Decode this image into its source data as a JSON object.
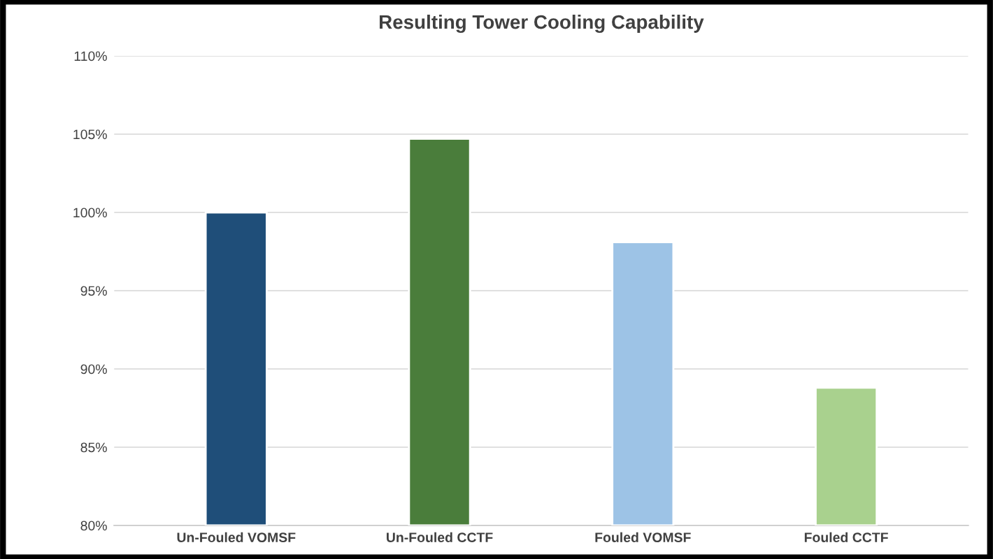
{
  "chart_data": {
    "type": "bar",
    "title": "Resulting Tower Cooling Capability",
    "categories": [
      "Un-Fouled VOMSF",
      "Un-Fouled CCTF",
      "Fouled VOMSF",
      "Fouled CCTF"
    ],
    "values": [
      100,
      104.7,
      98.1,
      88.8
    ],
    "colors": [
      "#1f4e79",
      "#4a7d3b",
      "#9dc3e6",
      "#a9d18e"
    ],
    "ylim": [
      80,
      110
    ],
    "yticks": [
      {
        "value": 80,
        "label": "80%"
      },
      {
        "value": 85,
        "label": "85%"
      },
      {
        "value": 90,
        "label": "90%"
      },
      {
        "value": 95,
        "label": "95%"
      },
      {
        "value": 100,
        "label": "100%"
      },
      {
        "value": 105,
        "label": "105%"
      },
      {
        "value": 110,
        "label": "110%"
      }
    ],
    "grid": "y",
    "legend": false
  }
}
